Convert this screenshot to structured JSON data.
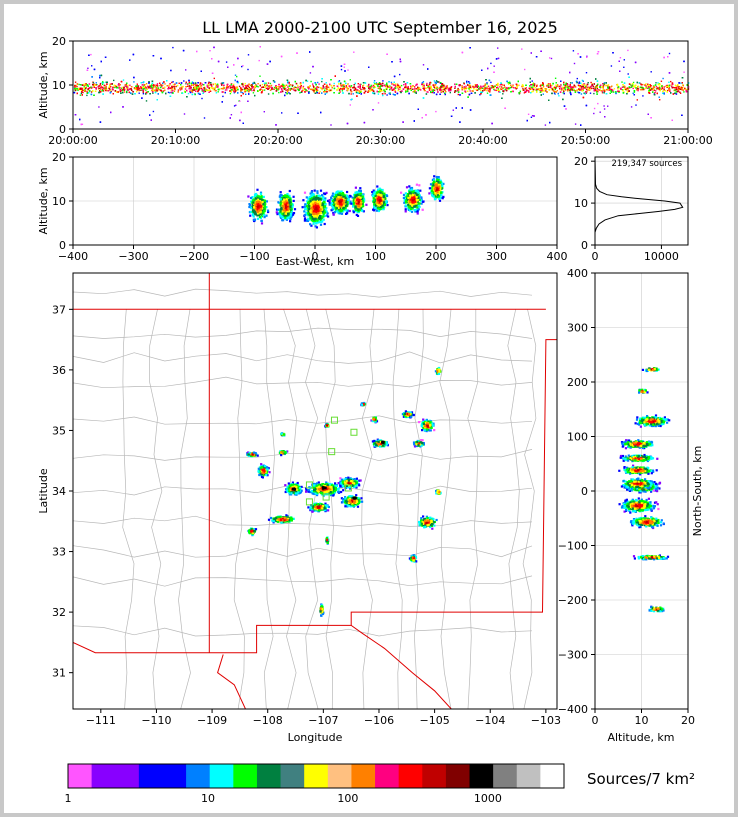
{
  "chart_data": [
    {
      "type": "scatter",
      "name": "time-height",
      "title": "LL LMA 2000-2100 UTC September 16, 2025",
      "xlabel": "",
      "ylabel": "Altitude, km",
      "xticks": [
        "20:00:00",
        "20:10:00",
        "20:20:00",
        "20:30:00",
        "20:40:00",
        "20:50:00",
        "21:00:00"
      ],
      "yticks": [
        "0",
        "10",
        "20"
      ],
      "ylim": [
        0,
        20
      ],
      "band_core_altitude_km": 9.5,
      "band_range_km": [
        3,
        14
      ]
    },
    {
      "type": "scatter",
      "name": "east-west-altitude",
      "xlabel": "East-West, km",
      "ylabel": "Altitude, km",
      "xlim": [
        -400,
        400
      ],
      "ylim": [
        0,
        20
      ],
      "xticks": [
        "−400",
        "−300",
        "−200",
        "−100",
        "0",
        "100",
        "200",
        "300",
        "400"
      ],
      "yticks": [
        "0",
        "10",
        "20"
      ]
    },
    {
      "type": "line",
      "name": "altitude-histogram",
      "annotation": "219,347 sources",
      "xlim": [
        0,
        14000
      ],
      "ylim": [
        0,
        21
      ],
      "xticks": [
        "0",
        "10000"
      ],
      "yticks": [
        "0",
        "10",
        "20"
      ],
      "x": [
        0,
        200,
        600,
        1500,
        3500,
        6500,
        9500,
        12000,
        13200,
        12800,
        10500,
        7000,
        4000,
        1800,
        700,
        250,
        80,
        0
      ],
      "y": [
        3,
        4,
        5,
        6,
        7,
        7.5,
        8,
        8.5,
        9,
        10,
        10.5,
        11,
        11.5,
        12,
        12.8,
        13.5,
        14.5,
        21
      ]
    },
    {
      "type": "scatter",
      "name": "plan-view",
      "xlabel": "Longitude",
      "ylabel": "Latitude",
      "xlim": [
        -111.5,
        -102.8
      ],
      "ylim": [
        30.4,
        37.6
      ],
      "xticks": [
        "−111",
        "−110",
        "−109",
        "−108",
        "−107",
        "−106",
        "−105",
        "−104",
        "−103"
      ],
      "yticks": [
        "31",
        "32",
        "33",
        "34",
        "35",
        "36",
        "37"
      ],
      "stations": [
        [
          -106.8,
          35.17
        ],
        [
          -106.45,
          34.97
        ],
        [
          -106.85,
          34.65
        ],
        [
          -107.25,
          34.1
        ],
        [
          -106.55,
          34.05
        ],
        [
          -106.95,
          33.9
        ],
        [
          -107.25,
          33.82
        ]
      ]
    },
    {
      "type": "scatter",
      "name": "altitude-north-south",
      "xlabel": "Altitude, km",
      "ylabel": "North-South, km",
      "xlim": [
        0,
        20
      ],
      "ylim": [
        -400,
        400
      ],
      "xticks": [
        "0",
        "10",
        "20"
      ],
      "yticks": [
        "−400",
        "−300",
        "−200",
        "−100",
        "0",
        "100",
        "200",
        "300",
        "400"
      ]
    }
  ],
  "colorbar": {
    "label": "Sources/7 km²",
    "ticks": [
      "1",
      "10",
      "100",
      "1000"
    ],
    "colors": [
      "#ff55ff",
      "#8800ff",
      "#8800ff",
      "#0000ff",
      "#0000ff",
      "#0080ff",
      "#00ffff",
      "#00ff00",
      "#008040",
      "#408080",
      "#ffff00",
      "#ffc080",
      "#ff8000",
      "#ff0080",
      "#ff0000",
      "#c00000",
      "#800000",
      "#000000",
      "#808080",
      "#c0c0c0",
      "#ffffff"
    ]
  }
}
